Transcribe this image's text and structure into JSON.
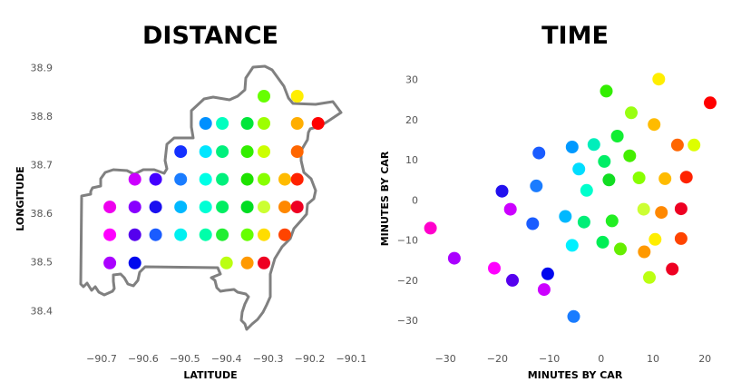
{
  "chart_data": [
    {
      "type": "scatter",
      "title": "DISTANCE",
      "xlabel": "LATITUDE",
      "ylabel": "LONGITUDE",
      "xlim": [
        -90.75,
        -90.09
      ],
      "ylim": [
        38.38,
        38.91
      ],
      "xticks": [
        -90.7,
        -90.6,
        -90.5,
        -90.4,
        -90.3,
        -90.2,
        -90.1
      ],
      "xtick_labels": [
        "−90.7",
        "−90.6",
        "−90.5",
        "−90.4",
        "−90.3",
        "−90.2",
        "−90.1"
      ],
      "yticks": [
        38.4,
        38.5,
        38.6,
        38.7,
        38.8,
        38.9
      ],
      "ytick_labels": [
        "38.4",
        "38.5",
        "38.6",
        "38.7",
        "38.8",
        "38.9"
      ],
      "grid": false,
      "points": [
        {
          "x": -90.31,
          "y": 38.841,
          "color": "#66ff00"
        },
        {
          "x": -90.23,
          "y": 38.841,
          "color": "#ffee00"
        },
        {
          "x": -90.45,
          "y": 38.785,
          "color": "#0090ff"
        },
        {
          "x": -90.41,
          "y": 38.785,
          "color": "#00ffbf"
        },
        {
          "x": -90.35,
          "y": 38.785,
          "color": "#00e63a"
        },
        {
          "x": -90.31,
          "y": 38.785,
          "color": "#9dff00"
        },
        {
          "x": -90.23,
          "y": 38.785,
          "color": "#ffae00"
        },
        {
          "x": -90.18,
          "y": 38.785,
          "color": "#ff0000"
        },
        {
          "x": -90.51,
          "y": 38.727,
          "color": "#1430ff"
        },
        {
          "x": -90.45,
          "y": 38.727,
          "color": "#00e6ff"
        },
        {
          "x": -90.41,
          "y": 38.727,
          "color": "#00f07c"
        },
        {
          "x": -90.35,
          "y": 38.727,
          "color": "#33ee00"
        },
        {
          "x": -90.31,
          "y": 38.727,
          "color": "#ccff00"
        },
        {
          "x": -90.23,
          "y": 38.727,
          "color": "#ff6600"
        },
        {
          "x": -90.62,
          "y": 38.67,
          "color": "#cc00ff"
        },
        {
          "x": -90.57,
          "y": 38.67,
          "color": "#4400ff"
        },
        {
          "x": -90.51,
          "y": 38.67,
          "color": "#1a7cff"
        },
        {
          "x": -90.45,
          "y": 38.67,
          "color": "#00ffe6"
        },
        {
          "x": -90.41,
          "y": 38.67,
          "color": "#00f07c"
        },
        {
          "x": -90.35,
          "y": 38.67,
          "color": "#1ee200"
        },
        {
          "x": -90.31,
          "y": 38.67,
          "color": "#88ff00"
        },
        {
          "x": -90.26,
          "y": 38.67,
          "color": "#ffbb00"
        },
        {
          "x": -90.23,
          "y": 38.67,
          "color": "#ff2200"
        },
        {
          "x": -90.68,
          "y": 38.613,
          "color": "#ee00ee"
        },
        {
          "x": -90.62,
          "y": 38.613,
          "color": "#8800ff"
        },
        {
          "x": -90.57,
          "y": 38.613,
          "color": "#1a0ff0"
        },
        {
          "x": -90.51,
          "y": 38.613,
          "color": "#00b8ff"
        },
        {
          "x": -90.45,
          "y": 38.613,
          "color": "#00ffd5"
        },
        {
          "x": -90.41,
          "y": 38.613,
          "color": "#00ee62"
        },
        {
          "x": -90.35,
          "y": 38.613,
          "color": "#00dd22"
        },
        {
          "x": -90.31,
          "y": 38.613,
          "color": "#ccff33"
        },
        {
          "x": -90.26,
          "y": 38.613,
          "color": "#ff8800"
        },
        {
          "x": -90.23,
          "y": 38.613,
          "color": "#ee0022"
        },
        {
          "x": -90.68,
          "y": 38.556,
          "color": "#ff00ff"
        },
        {
          "x": -90.62,
          "y": 38.556,
          "color": "#5500ee"
        },
        {
          "x": -90.57,
          "y": 38.556,
          "color": "#1a5cff"
        },
        {
          "x": -90.51,
          "y": 38.556,
          "color": "#00f0f0"
        },
        {
          "x": -90.45,
          "y": 38.556,
          "color": "#00ffaa"
        },
        {
          "x": -90.41,
          "y": 38.556,
          "color": "#22ee33"
        },
        {
          "x": -90.35,
          "y": 38.556,
          "color": "#66ff00"
        },
        {
          "x": -90.31,
          "y": 38.556,
          "color": "#ffdd00"
        },
        {
          "x": -90.26,
          "y": 38.556,
          "color": "#ff4400"
        },
        {
          "x": -90.68,
          "y": 38.498,
          "color": "#aa00ff"
        },
        {
          "x": -90.62,
          "y": 38.498,
          "color": "#0008ee"
        },
        {
          "x": -90.4,
          "y": 38.498,
          "color": "#bbff11"
        },
        {
          "x": -90.35,
          "y": 38.498,
          "color": "#ff9900"
        },
        {
          "x": -90.31,
          "y": 38.498,
          "color": "#ee0022"
        }
      ]
    },
    {
      "type": "scatter",
      "title": "TIME",
      "xlabel": "MINUTES BY CAR",
      "ylabel": "MINUTES BY CAR",
      "xlim": [
        -36.5,
        25.2
      ],
      "ylim": [
        -33.8,
        33.3
      ],
      "xticks": [
        -30,
        -20,
        -10,
        0,
        10,
        20
      ],
      "xtick_labels": [
        "−30",
        "−20",
        "−10",
        "0",
        "10",
        "20"
      ],
      "yticks": [
        -30,
        -20,
        -10,
        0,
        10,
        20,
        30
      ],
      "ytick_labels": [
        "−30",
        "−20",
        "−10",
        "0",
        "10",
        "20",
        "30"
      ],
      "grid": false,
      "points": [
        {
          "x": 11.1,
          "y": 30.1,
          "color": "#ffee00"
        },
        {
          "x": 1.0,
          "y": 27.1,
          "color": "#33ee00"
        },
        {
          "x": 21.0,
          "y": 24.2,
          "color": "#ff0000"
        },
        {
          "x": 5.8,
          "y": 21.7,
          "color": "#99ff11"
        },
        {
          "x": 10.2,
          "y": 18.8,
          "color": "#ffbb00"
        },
        {
          "x": 3.1,
          "y": 15.9,
          "color": "#11ee33"
        },
        {
          "x": -12.0,
          "y": 11.7,
          "color": "#1a5cff"
        },
        {
          "x": -5.6,
          "y": 13.2,
          "color": "#0099ff"
        },
        {
          "x": -1.4,
          "y": 13.8,
          "color": "#00eebb"
        },
        {
          "x": 14.7,
          "y": 13.7,
          "color": "#ff6600"
        },
        {
          "x": 17.9,
          "y": 13.7,
          "color": "#ddff00"
        },
        {
          "x": 5.5,
          "y": 11.0,
          "color": "#44ee00"
        },
        {
          "x": 0.6,
          "y": 9.6,
          "color": "#00ee66"
        },
        {
          "x": -4.3,
          "y": 7.7,
          "color": "#00ddff"
        },
        {
          "x": 1.5,
          "y": 5.0,
          "color": "#11dd22"
        },
        {
          "x": 7.3,
          "y": 5.5,
          "color": "#88ff00"
        },
        {
          "x": 12.3,
          "y": 5.3,
          "color": "#ffbb00"
        },
        {
          "x": 16.4,
          "y": 5.7,
          "color": "#ff2200"
        },
        {
          "x": -12.5,
          "y": 3.5,
          "color": "#1a7cff"
        },
        {
          "x": -19.1,
          "y": 2.2,
          "color": "#2210ee"
        },
        {
          "x": -2.8,
          "y": 2.4,
          "color": "#00ffcc"
        },
        {
          "x": -17.5,
          "y": -2.3,
          "color": "#cc00ff"
        },
        {
          "x": -6.9,
          "y": -4.1,
          "color": "#00b8ff"
        },
        {
          "x": -3.3,
          "y": -5.5,
          "color": "#00ee77"
        },
        {
          "x": 2.1,
          "y": -5.2,
          "color": "#22ee22"
        },
        {
          "x": 8.2,
          "y": -2.3,
          "color": "#ccff33"
        },
        {
          "x": 11.6,
          "y": -3.1,
          "color": "#ff8800"
        },
        {
          "x": 15.4,
          "y": -2.2,
          "color": "#ee0022"
        },
        {
          "x": -13.2,
          "y": -5.9,
          "color": "#1a5cff"
        },
        {
          "x": -32.9,
          "y": -7.0,
          "color": "#ff00cc"
        },
        {
          "x": -5.6,
          "y": -11.3,
          "color": "#00f0ff"
        },
        {
          "x": 0.3,
          "y": -10.5,
          "color": "#00ee55"
        },
        {
          "x": 3.7,
          "y": -12.2,
          "color": "#66ee00"
        },
        {
          "x": 10.4,
          "y": -9.8,
          "color": "#ffee00"
        },
        {
          "x": 15.4,
          "y": -9.6,
          "color": "#ff4400"
        },
        {
          "x": 8.3,
          "y": -12.9,
          "color": "#ff9900"
        },
        {
          "x": -28.3,
          "y": -14.5,
          "color": "#aa00ff"
        },
        {
          "x": -20.6,
          "y": -17.0,
          "color": "#ff00ff"
        },
        {
          "x": -10.3,
          "y": -18.4,
          "color": "#0008ee"
        },
        {
          "x": -17.1,
          "y": -20.0,
          "color": "#5500ee"
        },
        {
          "x": 13.7,
          "y": -17.2,
          "color": "#ee0022"
        },
        {
          "x": 9.3,
          "y": -19.3,
          "color": "#bbff11"
        },
        {
          "x": -11.0,
          "y": -22.3,
          "color": "#cc00ff"
        },
        {
          "x": -5.3,
          "y": -29.0,
          "color": "#1a7cff"
        }
      ]
    }
  ]
}
